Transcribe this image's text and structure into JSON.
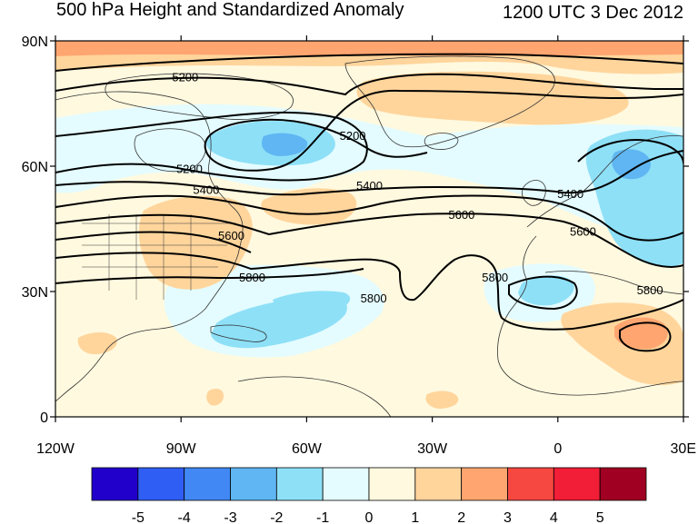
{
  "title": "500 hPa Height and Standardized Anomaly",
  "valid_time": "1200 UTC 3 Dec 2012",
  "map": {
    "projection": "cylindrical-equidistant",
    "lon_range": [
      -120,
      30
    ],
    "lat_range": [
      0,
      90
    ],
    "lon_ticks": [
      {
        "value": -120,
        "label": "120W"
      },
      {
        "value": -90,
        "label": "90W"
      },
      {
        "value": -60,
        "label": "60W"
      },
      {
        "value": -30,
        "label": "30W"
      },
      {
        "value": 0,
        "label": "0"
      },
      {
        "value": 30,
        "label": "30E"
      }
    ],
    "lat_ticks": [
      {
        "value": 90,
        "label": "90N"
      },
      {
        "value": 60,
        "label": "60N"
      },
      {
        "value": 30,
        "label": "30N"
      },
      {
        "value": 0,
        "label": "0"
      }
    ],
    "contour_labels": [
      {
        "text": "5200",
        "lon": -89,
        "lat": 81
      },
      {
        "text": "5200",
        "lon": -49,
        "lat": 67
      },
      {
        "text": "5200",
        "lon": -88,
        "lat": 59
      },
      {
        "text": "5400",
        "lon": -84,
        "lat": 54
      },
      {
        "text": "5400",
        "lon": -45,
        "lat": 55
      },
      {
        "text": "5400",
        "lon": 3,
        "lat": 53
      },
      {
        "text": "5600",
        "lon": -23,
        "lat": 48
      },
      {
        "text": "5600",
        "lon": 6,
        "lat": 44
      },
      {
        "text": "5600",
        "lon": -78,
        "lat": 43
      },
      {
        "text": "5800",
        "lon": -73,
        "lat": 33
      },
      {
        "text": "5800",
        "lon": -44,
        "lat": 28
      },
      {
        "text": "5800",
        "lon": -15,
        "lat": 33
      },
      {
        "text": "5800",
        "lon": 22,
        "lat": 30
      }
    ]
  },
  "colorbar": {
    "labels": [
      "-5",
      "-4",
      "-3",
      "-2",
      "-1",
      "0",
      "1",
      "2",
      "3",
      "4",
      "5"
    ],
    "colors": [
      "#2200cc",
      "#2f5ef5",
      "#4188f5",
      "#5fb6f2",
      "#8ee0f7",
      "#e4fcff",
      "#fff9df",
      "#ffd59c",
      "#ffa570",
      "#f74741",
      "#f21d37",
      "#a00021"
    ]
  },
  "colors": {
    "neg1": "#e4fcff",
    "neg2": "#8ee0f7",
    "neg3": "#5fb6f2",
    "pos1": "#fff9df",
    "pos2": "#ffd59c",
    "pos3": "#ffa570"
  }
}
